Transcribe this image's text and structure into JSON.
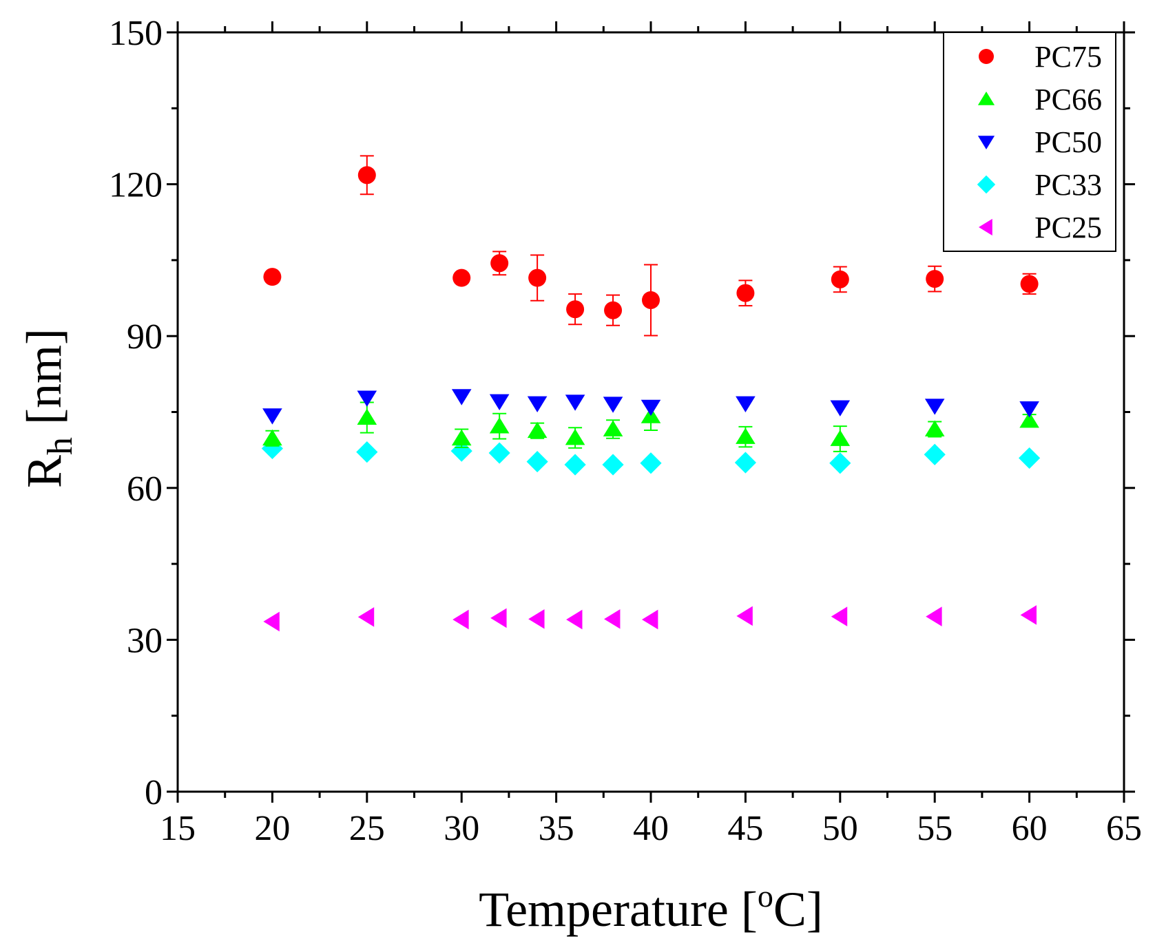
{
  "chart_data": {
    "type": "scatter",
    "xlabel": "Temperature [oC]",
    "xlabel_parts": {
      "main": "Temperature [",
      "sup": "o",
      "end": "C]"
    },
    "ylabel": "Rh [nm]",
    "ylabel_parts": {
      "main": "R",
      "sub": "h",
      "end": " [nm]"
    },
    "xlim": [
      15,
      65
    ],
    "ylim": [
      0,
      150
    ],
    "x_ticks": [
      15,
      20,
      25,
      30,
      35,
      40,
      45,
      50,
      55,
      60,
      65
    ],
    "y_ticks": [
      0,
      30,
      60,
      90,
      120,
      150
    ],
    "x": [
      20,
      25,
      30,
      32,
      34,
      36,
      38,
      40,
      45,
      50,
      55,
      60
    ],
    "legend_position": "top-right",
    "series": [
      {
        "name": "PC75",
        "marker": "circle",
        "color": "#ff0000",
        "y": [
          101.7,
          121.8,
          101.5,
          104.4,
          101.5,
          95.3,
          95.1,
          97.1,
          98.5,
          101.2,
          101.3,
          100.3
        ],
        "err": [
          1.0,
          3.8,
          1.0,
          2.3,
          4.5,
          3.0,
          3.0,
          7.0,
          2.5,
          2.5,
          2.5,
          2.0
        ]
      },
      {
        "name": "PC66",
        "marker": "triangle-up",
        "color": "#00ff00",
        "y": [
          69.8,
          73.9,
          69.8,
          72.2,
          71.3,
          69.9,
          71.6,
          74.2,
          70.1,
          69.7,
          71.6,
          73.3
        ],
        "err": [
          1.5,
          3.0,
          1.8,
          2.5,
          1.5,
          2.0,
          1.8,
          2.8,
          2.0,
          2.5,
          1.5,
          1.2
        ]
      },
      {
        "name": "PC50",
        "marker": "triangle-down",
        "color": "#0000ff",
        "y": [
          74.3,
          77.8,
          78.1,
          77.1,
          76.7,
          77.0,
          76.6,
          76.0,
          76.7,
          75.9,
          76.2,
          75.7
        ],
        "err": [
          0,
          0,
          0,
          0,
          0,
          0,
          0,
          0,
          0,
          0,
          0,
          0
        ]
      },
      {
        "name": "PC33",
        "marker": "diamond",
        "color": "#00ffff",
        "y": [
          67.8,
          67.1,
          67.3,
          66.9,
          65.2,
          64.6,
          64.6,
          64.9,
          65.0,
          64.9,
          66.6,
          65.9
        ],
        "err": [
          0,
          0,
          0,
          0,
          0,
          0,
          0,
          0,
          0,
          0,
          0,
          0
        ]
      },
      {
        "name": "PC25",
        "marker": "triangle-left",
        "color": "#ff00ff",
        "y": [
          33.6,
          34.5,
          34.0,
          34.3,
          34.1,
          34.0,
          34.1,
          34.0,
          34.7,
          34.6,
          34.6,
          34.9
        ],
        "err": [
          0,
          0,
          0,
          0,
          0,
          0,
          0,
          0,
          0,
          0,
          0,
          0
        ]
      }
    ]
  }
}
